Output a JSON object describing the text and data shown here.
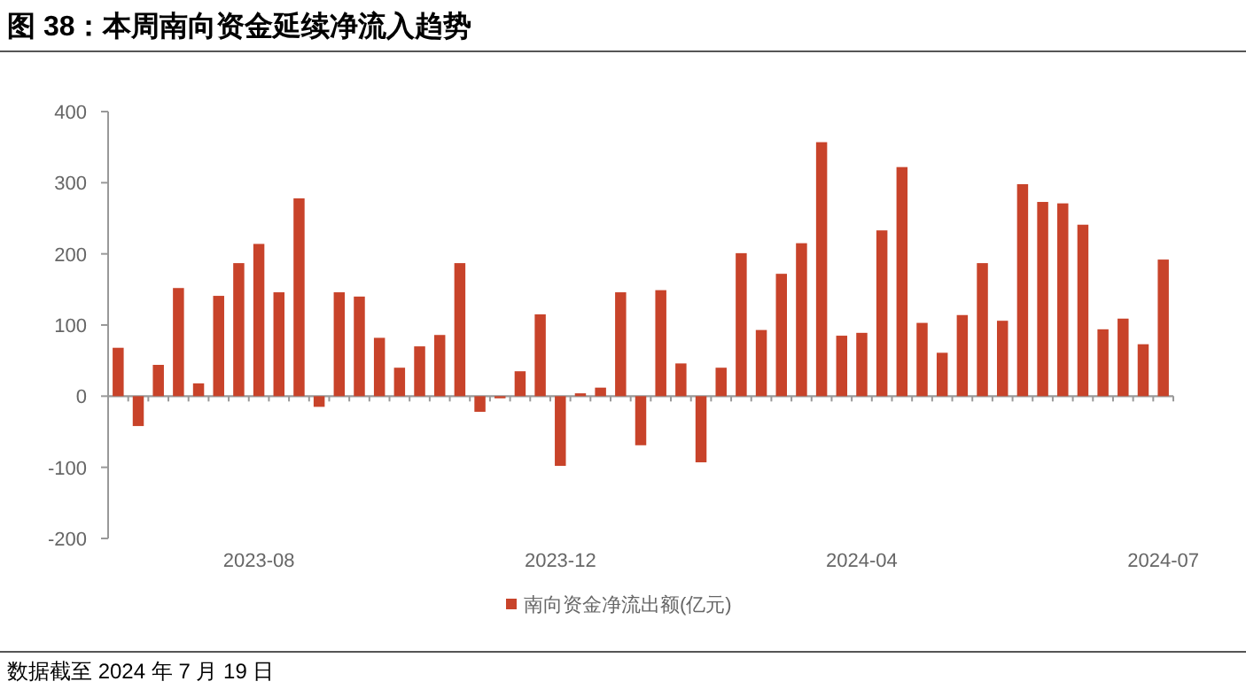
{
  "chart_data": {
    "type": "bar",
    "title": "图 38：本周南向资金延续净流入趋势",
    "categories": [
      null,
      null,
      null,
      null,
      null,
      null,
      null,
      "2023-08",
      null,
      null,
      null,
      null,
      null,
      null,
      null,
      null,
      null,
      null,
      null,
      null,
      null,
      null,
      "2023-12",
      null,
      null,
      null,
      null,
      null,
      null,
      null,
      null,
      null,
      null,
      null,
      null,
      null,
      null,
      "2024-04",
      null,
      null,
      null,
      null,
      null,
      null,
      null,
      null,
      null,
      null,
      null,
      null,
      null,
      null,
      "2024-07"
    ],
    "series": [
      {
        "name": "南向资金净流出额(亿元)",
        "color": "#c8432a",
        "values": [
          68,
          -42,
          44,
          152,
          18,
          141,
          187,
          214,
          146,
          278,
          -15,
          146,
          140,
          82,
          40,
          70,
          86,
          187,
          -22,
          -3,
          35,
          115,
          -98,
          4,
          12,
          146,
          -69,
          149,
          46,
          -93,
          40,
          201,
          93,
          172,
          215,
          357,
          85,
          89,
          233,
          322,
          103,
          61,
          114,
          187,
          106,
          298,
          273,
          271,
          241,
          94,
          109,
          73,
          192
        ]
      }
    ],
    "ylim": [
      -200,
      400
    ],
    "yticks": [
      -200,
      -100,
      0,
      100,
      200,
      300,
      400
    ],
    "legend": "bottom",
    "annotations": [
      "数据截至 2024 年 7 月 19 日"
    ]
  }
}
